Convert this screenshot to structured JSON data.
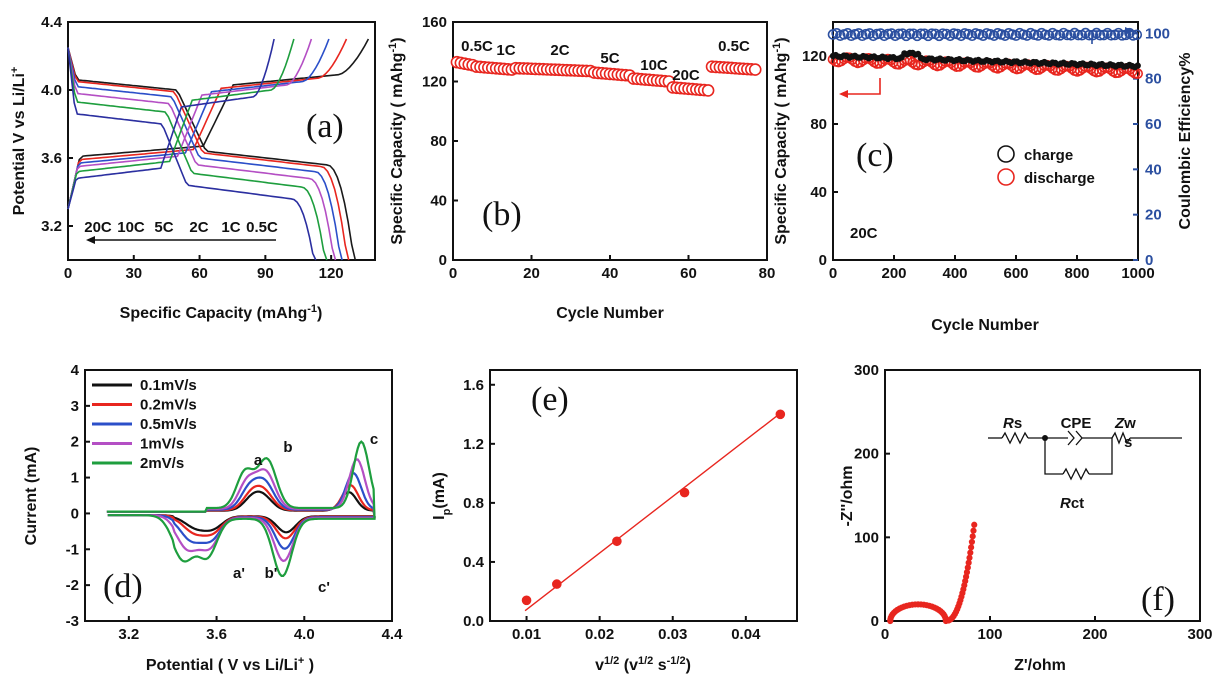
{
  "chart_data": [
    {
      "id": "a",
      "type": "line",
      "panel_label": "(a)",
      "xlabel": "Specific Capacity (mAhg",
      "xlabel_sup": "-1",
      "xlabel_end": ")",
      "ylabel": "Potential V vs Li/Li",
      "ylabel_sup": "+",
      "xlim": [
        0,
        140
      ],
      "ylim": [
        3.0,
        4.4
      ],
      "xticks": [
        "0",
        "30",
        "60",
        "90",
        "120"
      ],
      "yticks": [
        "3.2",
        "3.6",
        "4.0",
        "4.4"
      ],
      "rate_labels": [
        "20C",
        "10C",
        "5C",
        "2C",
        "1C",
        "0.5C"
      ],
      "series": [
        {
          "color": "#1a1a1a",
          "charge_cap": 137,
          "charge_plateau": 4.06,
          "discharge_cap": 131,
          "discharge_plateau": 3.58
        },
        {
          "color": "#e8261f",
          "charge_cap": 127,
          "charge_plateau": 4.04,
          "discharge_cap": 128,
          "discharge_plateau": 3.57
        },
        {
          "color": "#2b4fc9",
          "charge_cap": 119,
          "charge_plateau": 4.02,
          "discharge_cap": 125,
          "discharge_plateau": 3.54
        },
        {
          "color": "#b44fc4",
          "charge_cap": 111,
          "charge_plateau": 4.0,
          "discharge_cap": 122,
          "discharge_plateau": 3.5
        },
        {
          "color": "#1e9e3e",
          "charge_cap": 103,
          "charge_plateau": 3.97,
          "discharge_cap": 118,
          "discharge_plateau": 3.45
        },
        {
          "color": "#2b2fa0",
          "charge_cap": 94,
          "charge_plateau": 3.93,
          "discharge_cap": 113,
          "discharge_plateau": 3.38
        }
      ]
    },
    {
      "id": "b",
      "type": "scatter",
      "panel_label": "(b)",
      "xlabel": "Cycle Number",
      "ylabel": "Specific Capacity",
      "ylabel_unit": "( mAhg",
      "ylabel_sup": "-1",
      "ylabel_end": ")",
      "xlim": [
        0,
        80
      ],
      "ylim": [
        0,
        160
      ],
      "xticks": [
        "0",
        "20",
        "40",
        "60",
        "80"
      ],
      "yticks": [
        "0",
        "40",
        "80",
        "120",
        "160"
      ],
      "marker_color": "#e8261f",
      "segments": [
        {
          "label": "0.5C",
          "x_from": 1,
          "x_to": 5,
          "value": 133
        },
        {
          "label": "1C",
          "x_from": 6,
          "x_to": 15,
          "value": 130
        },
        {
          "label": "2C",
          "x_from": 16,
          "x_to": 35,
          "value": 129
        },
        {
          "label": "5C",
          "x_from": 36,
          "x_to": 45,
          "value": 126
        },
        {
          "label": "10C",
          "x_from": 46,
          "x_to": 55,
          "value": 122
        },
        {
          "label": "20C",
          "x_from": 56,
          "x_to": 65,
          "value": 116
        },
        {
          "label": "0.5C",
          "x_from": 66,
          "x_to": 77,
          "value": 130
        }
      ]
    },
    {
      "id": "c",
      "type": "scatter",
      "panel_label": "(c)",
      "xlabel": "Cycle Number",
      "ylabel": "Specific Capacity",
      "ylabel_unit": "( mAhg",
      "ylabel_sup": "-1",
      "ylabel_end": ")",
      "y2label": "Coulombic Efficiency%",
      "xlim": [
        0,
        1000
      ],
      "ylim": [
        0,
        140
      ],
      "y2lim": [
        0,
        105
      ],
      "xticks": [
        "0",
        "200",
        "400",
        "600",
        "800",
        "1000"
      ],
      "yticks": [
        "0",
        "40",
        "80",
        "120"
      ],
      "y2ticks": [
        "0",
        "20",
        "40",
        "60",
        "80",
        "100"
      ],
      "rate_label": "20C",
      "legend_position": "center-right",
      "series": [
        {
          "name": "charge",
          "color": "#111111",
          "start": 120,
          "end": 114
        },
        {
          "name": "discharge",
          "color": "#e8261f",
          "start": 118,
          "end": 111
        },
        {
          "color": "#2b4fa0",
          "efficiency": 99.5
        }
      ]
    },
    {
      "id": "d",
      "type": "line",
      "panel_label": "(d)",
      "xlabel": "Potential ( V vs Li/Li",
      "xlabel_sup": "+",
      "xlabel_end": " )",
      "ylabel": "Current (mA)",
      "xlim": [
        3.0,
        4.4
      ],
      "ylim": [
        -3,
        4
      ],
      "xticks": [
        "3.2",
        "3.6",
        "4.0",
        "4.4"
      ],
      "yticks": [
        "-3",
        "-2",
        "-1",
        "0",
        "1",
        "2",
        "3",
        "4"
      ],
      "peak_labels": [
        "a",
        "b",
        "c",
        "a'",
        "b'",
        "c'"
      ],
      "legend_position": "top-left",
      "series": [
        {
          "name": "0.1mV/s",
          "color": "#111111",
          "scale": 0.28
        },
        {
          "name": "0.2mV/s",
          "color": "#e8261f",
          "scale": 0.38
        },
        {
          "name": "0.5mV/s",
          "color": "#2b4fc9",
          "scale": 0.55
        },
        {
          "name": "1mV/s",
          "color": "#b44fc4",
          "scale": 0.75
        },
        {
          "name": "2mV/s",
          "color": "#1e9e3e",
          "scale": 1.0
        }
      ]
    },
    {
      "id": "e",
      "type": "scatter",
      "panel_label": "(e)",
      "xlabel": "v",
      "xlabel_sup": "1/2",
      "xlabel_mid": " (v",
      "xlabel_sup2": "1/2",
      "xlabel_mid2": " s",
      "xlabel_sup3": "-1/2",
      "xlabel_end": ")",
      "ylabel": "I",
      "ylabel_sub": "p",
      "ylabel_end": "(mA)",
      "xlim": [
        0.005,
        0.047
      ],
      "ylim": [
        0.0,
        1.7
      ],
      "xticks": [
        "0.01",
        "0.02",
        "0.03",
        "0.04"
      ],
      "yticks": [
        "0.0",
        "0.4",
        "0.8",
        "1.2",
        "1.6"
      ],
      "marker_color": "#e8261f",
      "x": [
        0.01,
        0.01414,
        0.02236,
        0.03162,
        0.04472
      ],
      "y": [
        0.14,
        0.25,
        0.54,
        0.87,
        1.4
      ],
      "fit": {
        "x": [
          0.0098,
          0.0448
        ],
        "y": [
          0.07,
          1.41
        ]
      }
    },
    {
      "id": "f",
      "type": "scatter",
      "panel_label": "(f)",
      "xlabel": "Z'/ohm",
      "ylabel": "-Z''/ohm",
      "xlim": [
        0,
        300
      ],
      "ylim": [
        0,
        300
      ],
      "xticks": [
        "0",
        "100",
        "200",
        "300"
      ],
      "yticks": [
        "0",
        "100",
        "200",
        "300"
      ],
      "marker_color": "#e8261f",
      "semicircle": {
        "start": 5,
        "end": 58
      },
      "tail": {
        "x_end": 85,
        "y_end": 115
      },
      "circuit_labels": [
        "Rs",
        "CPE",
        "Zw",
        "Rct"
      ]
    }
  ]
}
